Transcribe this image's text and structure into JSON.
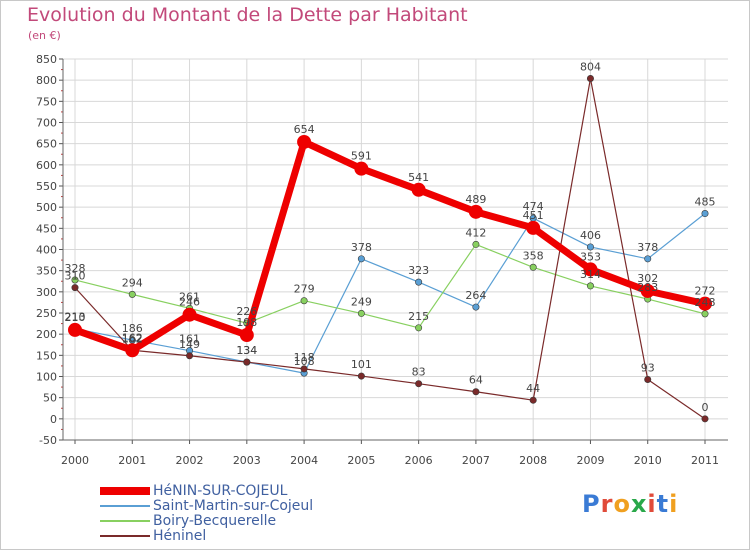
{
  "title": "Evolution du Montant de la Dette par Habitant",
  "unit_label": "(en €)",
  "brand": {
    "letters": [
      "P",
      "r",
      "o",
      "x",
      "i",
      "t",
      "i"
    ],
    "colors": [
      "#3a7bd5",
      "#e04b3a",
      "#f0a020",
      "#2aa84a",
      "#e04b3a",
      "#3a7bd5",
      "#f0a020"
    ]
  },
  "chart_data": {
    "type": "line",
    "x": [
      "2000",
      "2001",
      "2002",
      "2003",
      "2004",
      "2005",
      "2006",
      "2007",
      "2008",
      "2009",
      "2010",
      "2011"
    ],
    "ylim": [
      -50,
      850
    ],
    "yticks": [
      -50,
      0,
      50,
      100,
      150,
      200,
      250,
      300,
      350,
      400,
      450,
      500,
      550,
      600,
      650,
      700,
      750,
      800,
      850
    ],
    "grid": true,
    "legend_position": "bottom-left",
    "series": [
      {
        "name": "HéNIN-SUR-COJEUL",
        "color": "#ee0000",
        "width": 7,
        "marker": 7,
        "values": [
          210,
          162,
          246,
          198,
          654,
          591,
          541,
          489,
          451,
          353,
          302,
          272
        ]
      },
      {
        "name": "Saint-Martin-sur-Cojeul",
        "color": "#5a9fd4",
        "width": 1.2,
        "marker": 3.2,
        "values": [
          213,
          186,
          161,
          134,
          108,
          378,
          323,
          264,
          474,
          406,
          378,
          485
        ]
      },
      {
        "name": "Boiry-Becquerelle",
        "color": "#88d060",
        "width": 1.2,
        "marker": 3.2,
        "values": [
          328,
          294,
          261,
          226,
          279,
          249,
          215,
          412,
          358,
          314,
          283,
          248
        ]
      },
      {
        "name": "Héninel",
        "color": "#7a2a2a",
        "width": 1.2,
        "marker": 3.2,
        "values": [
          310,
          162,
          149,
          134,
          118,
          101,
          83,
          64,
          44,
          804,
          93,
          0
        ]
      }
    ]
  }
}
